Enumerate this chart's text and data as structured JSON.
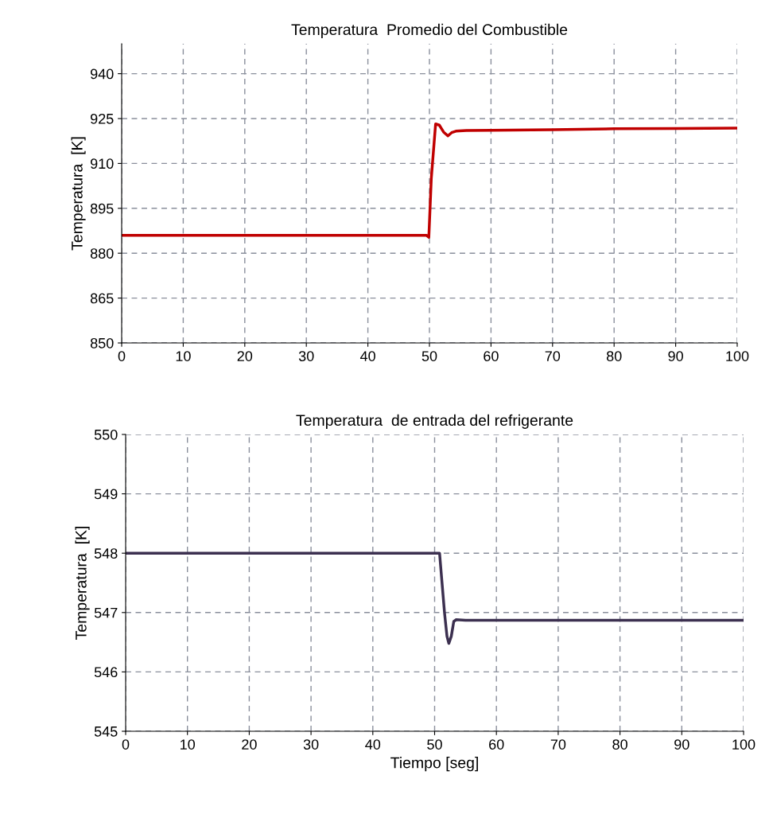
{
  "chart_data": [
    {
      "type": "line",
      "title": "Temperatura  Promedio del Combustible",
      "ylabel": "Temperatura  [K]",
      "xlim": [
        0,
        100
      ],
      "xticks": [
        0,
        10,
        20,
        30,
        40,
        50,
        60,
        70,
        80,
        90,
        100
      ],
      "ylim": [
        850,
        950
      ],
      "yticks": [
        850,
        865,
        880,
        895,
        910,
        925,
        940
      ],
      "grid": true,
      "legend": false,
      "marker": "none",
      "line_style": "solid",
      "series": [
        {
          "color": "#c00000",
          "x": [
            0,
            10,
            20,
            30,
            40,
            49.5,
            49.9,
            50.3,
            51.0,
            51.6,
            52.3,
            53.0,
            53.6,
            54.3,
            56,
            60,
            70,
            80,
            90,
            100
          ],
          "values": [
            886,
            886,
            886,
            886,
            886,
            886,
            885.3,
            905,
            923.2,
            922.8,
            920.5,
            919.2,
            920.3,
            920.8,
            921.0,
            921.1,
            921.3,
            921.6,
            921.7,
            921.8
          ]
        }
      ]
    },
    {
      "type": "line",
      "title": "Temperatura  de entrada del refrigerante",
      "xlabel": "Tiempo [seg]",
      "ylabel": "Temperatura  [K]",
      "xlim": [
        0,
        100
      ],
      "xticks": [
        0,
        10,
        20,
        30,
        40,
        50,
        60,
        70,
        80,
        90,
        100
      ],
      "ylim": [
        545,
        550
      ],
      "yticks": [
        545,
        546,
        547,
        548,
        549,
        550
      ],
      "grid": true,
      "legend": false,
      "marker": "none",
      "line_style": "solid",
      "series": [
        {
          "color": "#3c3050",
          "x": [
            0,
            10,
            20,
            30,
            40,
            50,
            50.8,
            51.2,
            51.6,
            52.0,
            52.3,
            52.7,
            53.1,
            53.5,
            55,
            60,
            70,
            80,
            90,
            100
          ],
          "values": [
            548,
            548,
            548,
            548,
            548,
            548,
            548,
            547.5,
            547.0,
            546.6,
            546.48,
            546.6,
            546.85,
            546.88,
            546.87,
            546.87,
            546.87,
            546.87,
            546.87,
            546.87
          ]
        }
      ]
    }
  ]
}
